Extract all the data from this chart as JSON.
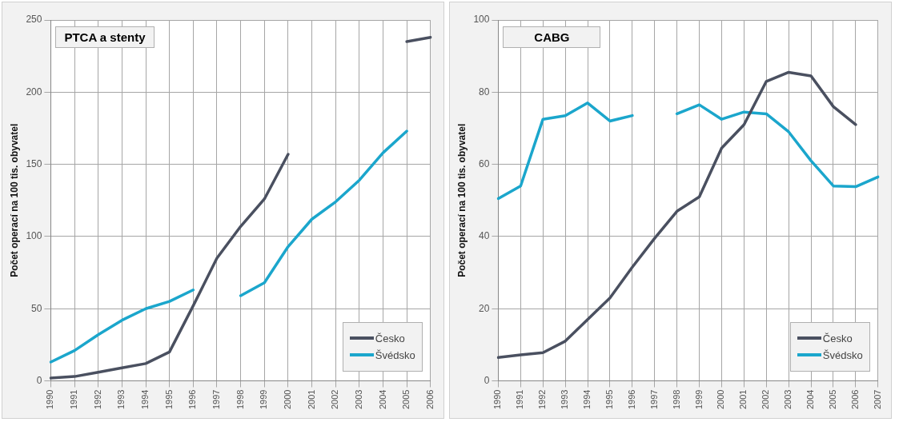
{
  "chart_data": [
    {
      "type": "line",
      "title": "PTCA a stenty",
      "ylabel": "Počet operací na 100 tis. obyvatel",
      "categories": [
        "1990",
        "1991",
        "1992",
        "1993",
        "1994",
        "1995",
        "1996",
        "1997",
        "1998",
        "1999",
        "2000",
        "2001",
        "2002",
        "2003",
        "2004",
        "2005",
        "2006"
      ],
      "series": [
        {
          "name": "Česko",
          "color": "#4a5060",
          "values": [
            2,
            3,
            6,
            9,
            12,
            20,
            52,
            85,
            107,
            126,
            157,
            null,
            null,
            null,
            null,
            235,
            238
          ]
        },
        {
          "name": "Švédsko",
          "color": "#1ba6cc",
          "values": [
            13,
            21,
            32,
            42,
            50,
            55,
            63,
            null,
            59,
            68,
            93,
            112,
            124,
            139,
            158,
            173,
            null
          ]
        }
      ],
      "ylim": [
        0,
        250
      ],
      "yticks": [
        0,
        50,
        100,
        150,
        200,
        250
      ],
      "grid": true,
      "legend": "bottom right",
      "marker": "none",
      "line_style": "solid"
    },
    {
      "type": "line",
      "title": "CABG",
      "ylabel": "Počet operací na 100 tis. obyvatel",
      "categories": [
        "1990",
        "1991",
        "1992",
        "1993",
        "1994",
        "1995",
        "1996",
        "1997",
        "1998",
        "1999",
        "2000",
        "2001",
        "2002",
        "2003",
        "2004",
        "2005",
        "2006",
        "2007"
      ],
      "series": [
        {
          "name": "Česko",
          "color": "#4a5060",
          "values": [
            6.5,
            7.2,
            7.8,
            11,
            17,
            23,
            31.5,
            39.5,
            47,
            51,
            64.5,
            71,
            83,
            85.5,
            84.5,
            76,
            71,
            null
          ]
        },
        {
          "name": "Švédsko",
          "color": "#1ba6cc",
          "values": [
            50.5,
            54,
            72.5,
            73.5,
            77,
            72,
            73.5,
            null,
            74,
            76.5,
            72.5,
            74.5,
            74,
            69,
            61,
            54,
            53.8,
            56.5
          ]
        }
      ],
      "ylim": [
        0,
        100
      ],
      "yticks": [
        0,
        20,
        40,
        60,
        80,
        100
      ],
      "grid": true,
      "legend": "bottom right",
      "marker": "none",
      "line_style": "solid"
    }
  ]
}
